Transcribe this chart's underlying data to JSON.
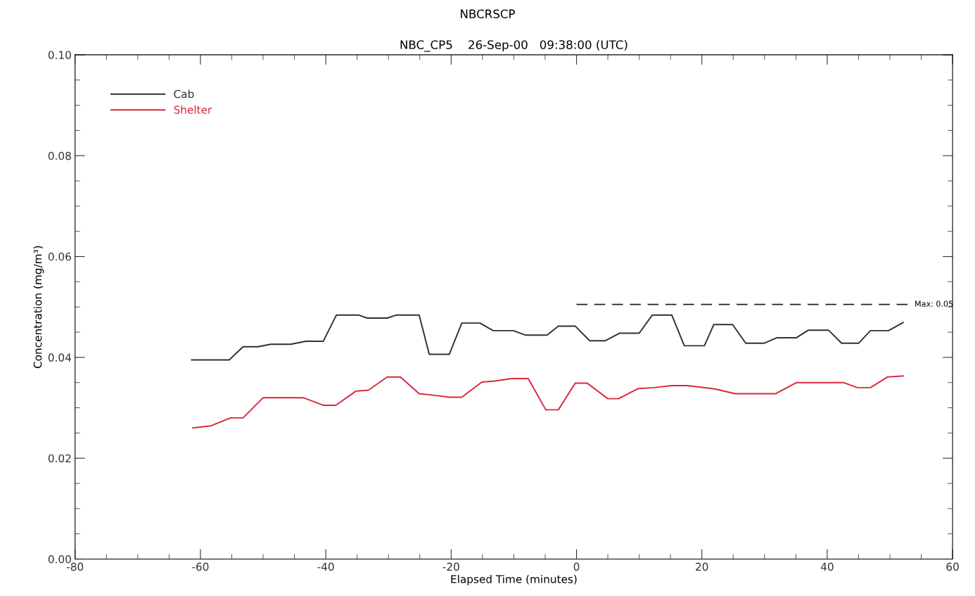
{
  "chart_data": {
    "type": "line",
    "title": "NBCRSCP",
    "subtitle": "NBC_CP5    26-Sep-00   09:38:00 (UTC)",
    "xlabel": "Elapsed Time (minutes)",
    "ylabel": "Concentration (mg/m³)",
    "xlim": [
      -80,
      60
    ],
    "xticks": [
      -80,
      -60,
      -40,
      -20,
      0,
      20,
      40,
      60
    ],
    "ylim": [
      0,
      0.1
    ],
    "yticks": [
      {
        "value": 0,
        "label": "0.00"
      },
      {
        "value": 0.02,
        "label": "0.02"
      },
      {
        "value": 0.04,
        "label": "0.04"
      },
      {
        "value": 0.06,
        "label": "0.06"
      },
      {
        "value": 0.08,
        "label": "0.08"
      },
      {
        "value": 0.1,
        "label": "0.10"
      }
    ],
    "grid": false,
    "legend": "top left",
    "marker": "none",
    "line_style": "solid",
    "series": [
      {
        "name": "Cab",
        "color": "#303030",
        "x": [
          -61.4,
          -55.4,
          -53.2,
          -50.8,
          -48.8,
          -45.6,
          -43.2,
          -40.4,
          -38.3,
          -34.8,
          -33.4,
          -30.2,
          -28.7,
          -25.1,
          -23.5,
          -20.3,
          -18.3,
          -15.4,
          -13.3,
          -10.1,
          -8.1,
          -4.7,
          -2.9,
          -0.2,
          2.1,
          4.6,
          6.9,
          10.0,
          12.1,
          15.2,
          17.2,
          20.4,
          21.9,
          24.9,
          27.0,
          29.9,
          32.0,
          35.1,
          37.0,
          40.2,
          42.3,
          45.0,
          46.9,
          49.8,
          52.1
        ],
        "values": [
          0.0395,
          0.0395,
          0.0421,
          0.0421,
          0.0426,
          0.0426,
          0.0432,
          0.0432,
          0.0484,
          0.0484,
          0.0478,
          0.0478,
          0.0484,
          0.0484,
          0.0406,
          0.0406,
          0.0468,
          0.0468,
          0.0453,
          0.0453,
          0.0444,
          0.0444,
          0.0462,
          0.0462,
          0.0433,
          0.0433,
          0.0448,
          0.0448,
          0.0484,
          0.0484,
          0.0423,
          0.0423,
          0.0465,
          0.0465,
          0.0428,
          0.0428,
          0.0439,
          0.0439,
          0.0454,
          0.0454,
          0.0428,
          0.0428,
          0.0453,
          0.0453,
          0.0469
        ]
      },
      {
        "name": "Shelter",
        "color": "#d8283a",
        "x": [
          -61.2,
          -58.4,
          -55.2,
          -53.2,
          -50.0,
          -43.6,
          -40.4,
          -38.4,
          -35.2,
          -33.2,
          -30.2,
          -28.1,
          -25.1,
          -22.8,
          -20.3,
          -18.3,
          -15.1,
          -13.1,
          -10.3,
          -7.7,
          -4.9,
          -2.9,
          -0.2,
          1.7,
          5.0,
          6.7,
          9.8,
          12.3,
          15.2,
          17.7,
          21.0,
          22.2,
          25.3,
          31.8,
          35.1,
          42.6,
          44.8,
          46.9,
          49.6,
          52.1
        ],
        "values": [
          0.026,
          0.0264,
          0.028,
          0.028,
          0.032,
          0.032,
          0.0305,
          0.0305,
          0.0333,
          0.0335,
          0.0361,
          0.0361,
          0.0328,
          0.0325,
          0.0321,
          0.0321,
          0.0351,
          0.0353,
          0.0358,
          0.0358,
          0.0296,
          0.0296,
          0.0349,
          0.0349,
          0.0318,
          0.0318,
          0.0338,
          0.034,
          0.0344,
          0.0344,
          0.0339,
          0.0337,
          0.0328,
          0.0328,
          0.035,
          0.035,
          0.034,
          0.034,
          0.0361,
          0.0363
        ]
      },
      {
        "color": "#202020",
        "line_style": "dashed",
        "x": [
          0,
          53
        ],
        "values": [
          0.0505,
          0.0505
        ]
      }
    ],
    "annotations": [
      {
        "text": "Max: 0.05",
        "x": 53,
        "y": 0.0505
      }
    ]
  }
}
